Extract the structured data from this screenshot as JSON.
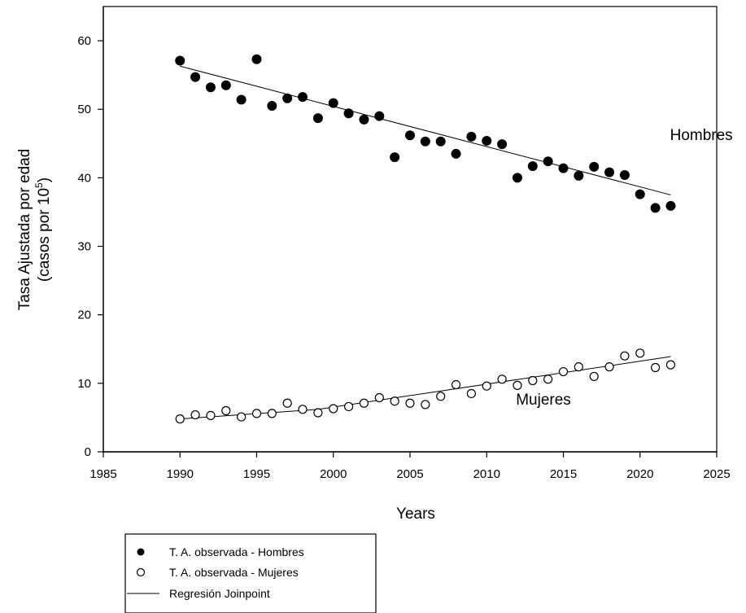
{
  "chart_data": {
    "type": "scatter",
    "xlabel": "Years",
    "ylabel_line1": "Tasa Ajustada por edad",
    "ylabel_line2": "(casos por 10",
    "ylabel_sup": "5",
    "ylabel_close": ")",
    "xlim": [
      1985,
      2025
    ],
    "ylim": [
      0,
      65
    ],
    "xticks": [
      1985,
      1990,
      1995,
      2000,
      2005,
      2010,
      2015,
      2020,
      2025
    ],
    "yticks": [
      0,
      10,
      20,
      30,
      40,
      50,
      60
    ],
    "grid": false,
    "legend_position": "bottom-left",
    "series": [
      {
        "name": "T. A. observada - Hombres",
        "marker": "filled-circle",
        "x": [
          1990,
          1991,
          1992,
          1993,
          1994,
          1995,
          1996,
          1997,
          1998,
          1999,
          2000,
          2001,
          2002,
          2003,
          2004,
          2005,
          2006,
          2007,
          2008,
          2009,
          2010,
          2011,
          2012,
          2013,
          2014,
          2015,
          2016,
          2017,
          2018,
          2019,
          2020,
          2021,
          2022
        ],
        "y": [
          57.1,
          54.7,
          53.2,
          53.5,
          51.4,
          57.3,
          50.5,
          51.6,
          51.8,
          48.7,
          50.9,
          49.4,
          48.5,
          49.0,
          43.0,
          46.2,
          45.3,
          45.3,
          43.5,
          46.0,
          45.4,
          44.9,
          40.0,
          41.7,
          42.4,
          41.4,
          40.3,
          41.6,
          40.8,
          40.4,
          37.6,
          35.6,
          35.9
        ]
      },
      {
        "name": "T. A. observada - Mujeres",
        "marker": "open-circle",
        "x": [
          1990,
          1991,
          1992,
          1993,
          1994,
          1995,
          1996,
          1997,
          1998,
          1999,
          2000,
          2001,
          2002,
          2003,
          2004,
          2005,
          2006,
          2007,
          2008,
          2009,
          2010,
          2011,
          2012,
          2013,
          2014,
          2015,
          2016,
          2017,
          2018,
          2019,
          2020,
          2021,
          2022
        ],
        "y": [
          4.8,
          5.4,
          5.3,
          6.0,
          5.1,
          5.6,
          5.6,
          7.1,
          6.2,
          5.7,
          6.3,
          6.6,
          7.1,
          7.9,
          7.4,
          7.1,
          6.9,
          8.1,
          9.8,
          8.5,
          9.6,
          10.6,
          9.7,
          10.4,
          10.6,
          11.7,
          12.4,
          11.0,
          12.4,
          14.0,
          14.4,
          12.3,
          12.7
        ]
      }
    ],
    "regression": {
      "name": "Regresión Joinpoint",
      "lines": [
        {
          "x": [
            1990,
            2022
          ],
          "y": [
            56.3,
            37.5
          ]
        },
        {
          "x": [
            1990,
            1999,
            2022
          ],
          "y": [
            4.8,
            6.2,
            13.9
          ]
        }
      ]
    },
    "annotations": [
      {
        "text": "Hombres",
        "x": 2024,
        "y": 45.5
      },
      {
        "text": "Mujeres",
        "x": 2013.7,
        "y": 6.9
      }
    ]
  }
}
